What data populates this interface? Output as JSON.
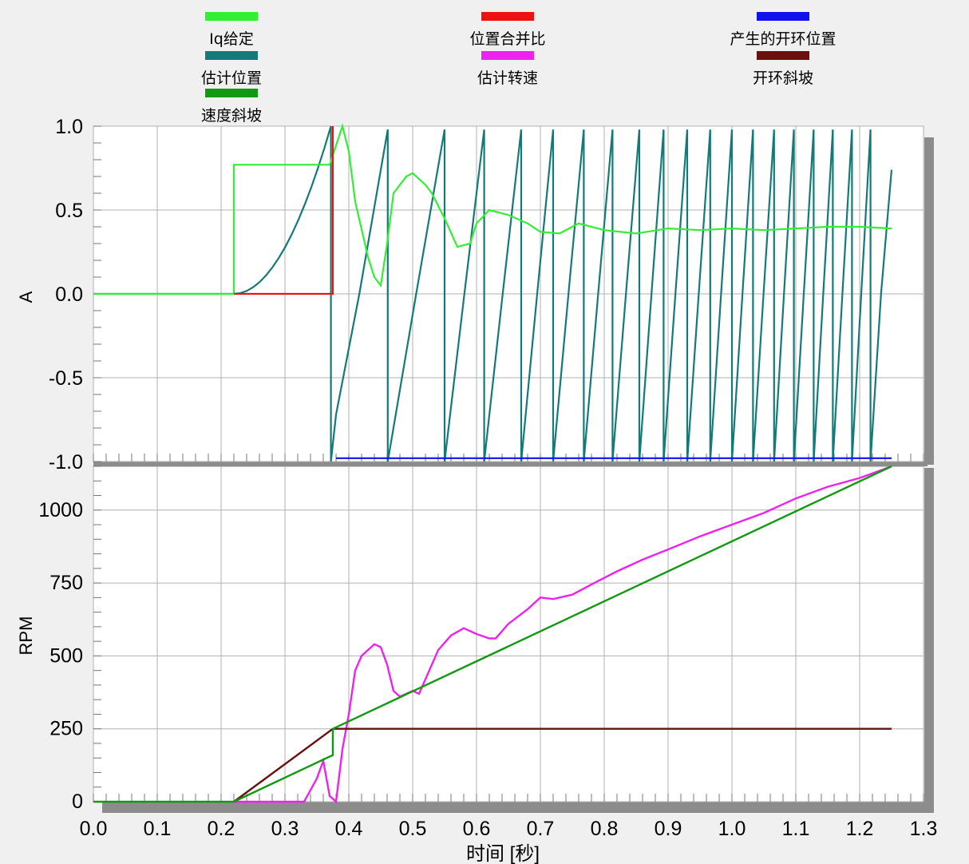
{
  "legend": [
    {
      "label": "Iq给定",
      "color": "#33ee33"
    },
    {
      "label": "位置合并比",
      "color": "#ee1111"
    },
    {
      "label": "产生的开环位置",
      "color": "#1111ee"
    },
    {
      "label": "估计位置",
      "color": "#137a78"
    },
    {
      "label": "估计转速",
      "color": "#ee22ee"
    },
    {
      "label": "开环斜坡",
      "color": "#6b0f0f"
    },
    {
      "label": "速度斜坡",
      "color": "#119911"
    }
  ],
  "chart_data": [
    {
      "type": "line",
      "ylabel": "A",
      "ylim": [
        -1.0,
        1.0
      ],
      "yticks": [
        "1.0",
        "0.5",
        "0.0",
        "-0.5",
        "-1.0"
      ],
      "ytick_values": [
        1.0,
        0.5,
        0.0,
        -0.5,
        -1.0
      ],
      "xlim": [
        0.0,
        1.3
      ],
      "grid": true,
      "series": [
        {
          "name": "Iq给定",
          "color": "#33ee33",
          "points": [
            [
              0.0,
              0.0
            ],
            [
              0.22,
              0.0
            ],
            [
              0.22,
              0.77
            ],
            [
              0.37,
              0.77
            ],
            [
              0.39,
              1.0
            ],
            [
              0.4,
              0.85
            ],
            [
              0.41,
              0.55
            ],
            [
              0.43,
              0.22
            ],
            [
              0.44,
              0.1
            ],
            [
              0.45,
              0.05
            ],
            [
              0.46,
              0.3
            ],
            [
              0.47,
              0.6
            ],
            [
              0.49,
              0.7
            ],
            [
              0.5,
              0.72
            ],
            [
              0.52,
              0.65
            ],
            [
              0.53,
              0.6
            ],
            [
              0.55,
              0.45
            ],
            [
              0.57,
              0.28
            ],
            [
              0.59,
              0.3
            ],
            [
              0.6,
              0.42
            ],
            [
              0.62,
              0.5
            ],
            [
              0.65,
              0.47
            ],
            [
              0.68,
              0.42
            ],
            [
              0.7,
              0.37
            ],
            [
              0.73,
              0.36
            ],
            [
              0.76,
              0.42
            ],
            [
              0.8,
              0.38
            ],
            [
              0.85,
              0.36
            ],
            [
              0.9,
              0.39
            ],
            [
              0.95,
              0.38
            ],
            [
              1.0,
              0.39
            ],
            [
              1.05,
              0.38
            ],
            [
              1.1,
              0.39
            ],
            [
              1.15,
              0.4
            ],
            [
              1.2,
              0.4
            ],
            [
              1.25,
              0.39
            ]
          ]
        },
        {
          "name": "位置合并比",
          "color": "#ee1111",
          "points": [
            [
              0.22,
              0.0
            ],
            [
              0.375,
              0.0
            ],
            [
              0.375,
              1.0
            ]
          ]
        },
        {
          "name": "产生的开环位置",
          "color": "#1111ee",
          "points": [
            [
              0.38,
              -0.98
            ],
            [
              1.25,
              -0.98
            ]
          ]
        },
        {
          "name": "估计位置",
          "color": "#137a78",
          "peak_times": [
            0.372,
            0.461,
            0.55,
            0.612,
            0.67,
            0.72,
            0.768,
            0.813,
            0.855,
            0.893,
            0.93,
            0.966,
            1.0,
            1.033,
            1.066,
            1.097,
            1.128,
            1.158,
            1.188,
            1.217,
            1.25
          ]
        }
      ]
    },
    {
      "type": "line",
      "ylabel": "RPM",
      "xlabel": "时间 [秒]",
      "ylim": [
        0,
        1150
      ],
      "yticks": [
        "1000",
        "750",
        "500",
        "250",
        "0"
      ],
      "ytick_values": [
        1000,
        750,
        500,
        250,
        0
      ],
      "xlim": [
        0.0,
        1.3
      ],
      "xticks": [
        "0.0",
        "0.1",
        "0.2",
        "0.3",
        "0.4",
        "0.5",
        "0.6",
        "0.7",
        "0.8",
        "0.9",
        "1.0",
        "1.1",
        "1.2",
        "1.3"
      ],
      "xtick_values": [
        0.0,
        0.1,
        0.2,
        0.3,
        0.4,
        0.5,
        0.6,
        0.7,
        0.8,
        0.9,
        1.0,
        1.1,
        1.2,
        1.3
      ],
      "grid": true,
      "series": [
        {
          "name": "估计转速",
          "color": "#ee22ee",
          "points": [
            [
              0.22,
              0
            ],
            [
              0.3,
              0
            ],
            [
              0.33,
              0
            ],
            [
              0.35,
              80
            ],
            [
              0.36,
              140
            ],
            [
              0.37,
              20
            ],
            [
              0.38,
              0
            ],
            [
              0.39,
              180
            ],
            [
              0.4,
              300
            ],
            [
              0.41,
              450
            ],
            [
              0.42,
              500
            ],
            [
              0.44,
              540
            ],
            [
              0.45,
              530
            ],
            [
              0.46,
              470
            ],
            [
              0.47,
              380
            ],
            [
              0.48,
              360
            ],
            [
              0.49,
              370
            ],
            [
              0.5,
              380
            ],
            [
              0.51,
              370
            ],
            [
              0.52,
              420
            ],
            [
              0.53,
              470
            ],
            [
              0.54,
              520
            ],
            [
              0.56,
              570
            ],
            [
              0.58,
              595
            ],
            [
              0.6,
              575
            ],
            [
              0.62,
              560
            ],
            [
              0.63,
              560
            ],
            [
              0.65,
              610
            ],
            [
              0.68,
              660
            ],
            [
              0.7,
              700
            ],
            [
              0.72,
              695
            ],
            [
              0.75,
              710
            ],
            [
              0.78,
              745
            ],
            [
              0.82,
              790
            ],
            [
              0.86,
              830
            ],
            [
              0.9,
              865
            ],
            [
              0.95,
              910
            ],
            [
              1.0,
              950
            ],
            [
              1.05,
              990
            ],
            [
              1.1,
              1040
            ],
            [
              1.15,
              1080
            ],
            [
              1.2,
              1110
            ],
            [
              1.25,
              1150
            ]
          ]
        },
        {
          "name": "开环斜坡",
          "color": "#6b0f0f",
          "points": [
            [
              0.22,
              0
            ],
            [
              0.375,
              250
            ],
            [
              1.25,
              250
            ]
          ]
        },
        {
          "name": "速度斜坡",
          "color": "#119911",
          "points": [
            [
              0.0,
              0
            ],
            [
              0.22,
              0
            ],
            [
              0.375,
              160
            ],
            [
              0.375,
              250
            ],
            [
              1.25,
              1150
            ]
          ]
        }
      ]
    }
  ]
}
